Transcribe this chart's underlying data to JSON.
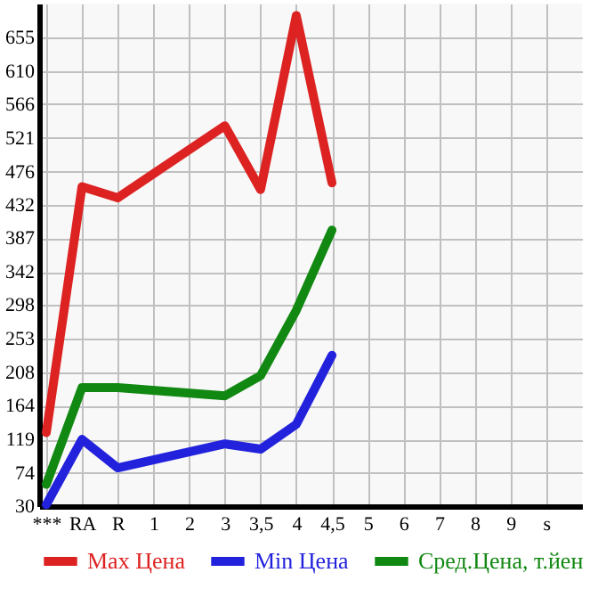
{
  "chart_data": {
    "type": "line",
    "categories": [
      "***",
      "RA",
      "R",
      "1",
      "2",
      "3",
      "3,5",
      "4",
      "4,5",
      "5",
      "6",
      "7",
      "8",
      "9",
      "s"
    ],
    "series": [
      {
        "name": "Max Цена",
        "color": "#dd2222",
        "values": [
          128,
          456,
          441,
          null,
          null,
          537,
          452,
          684,
          461,
          null,
          null,
          null,
          null,
          null,
          null
        ]
      },
      {
        "name": "Min Цена",
        "color": "#2222dd",
        "values": [
          32,
          119,
          81,
          null,
          null,
          113,
          106,
          139,
          231,
          null,
          null,
          null,
          null,
          null,
          null
        ]
      },
      {
        "name": "Сред.Цена, т.йен",
        "color": "#118811",
        "values": [
          59,
          188,
          188,
          null,
          null,
          177,
          204,
          291,
          398,
          null,
          null,
          null,
          null,
          null,
          null
        ]
      }
    ],
    "ylim": [
      30,
      700
    ],
    "yticks": [
      30,
      74,
      119,
      164,
      208,
      253,
      298,
      342,
      387,
      432,
      476,
      521,
      566,
      610,
      655
    ],
    "grid": true,
    "legend": "bottom",
    "marker": "none",
    "line_style": "solid"
  }
}
